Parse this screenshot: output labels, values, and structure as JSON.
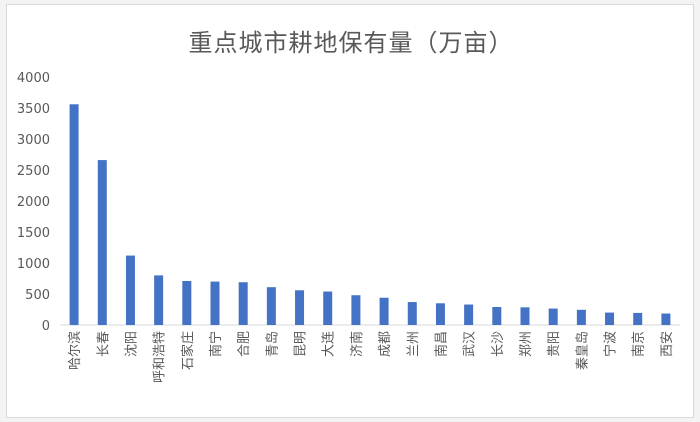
{
  "chart_data": {
    "type": "bar",
    "title": "重点城市耕地保有量（万亩）",
    "categories": [
      "哈尔滨",
      "长春",
      "沈阳",
      "呼和浩特",
      "石家庄",
      "南宁",
      "合肥",
      "青岛",
      "昆明",
      "大连",
      "济南",
      "成都",
      "兰州",
      "南昌",
      "武汉",
      "长沙",
      "郑州",
      "贵阳",
      "秦皇岛",
      "宁波",
      "南京",
      "西安"
    ],
    "values": [
      3560,
      2660,
      1120,
      800,
      710,
      700,
      690,
      610,
      560,
      540,
      480,
      440,
      370,
      350,
      330,
      290,
      285,
      265,
      245,
      200,
      195,
      185
    ],
    "ylim": [
      0,
      4000
    ],
    "yticks": [
      0,
      500,
      1000,
      1500,
      2000,
      2500,
      3000,
      3500,
      4000
    ],
    "xlabel": "",
    "ylabel": "",
    "grid": false,
    "legend": "none",
    "bar_color": "#4472C4",
    "axis_color": "#d9d9d9",
    "text_color": "#595959"
  }
}
